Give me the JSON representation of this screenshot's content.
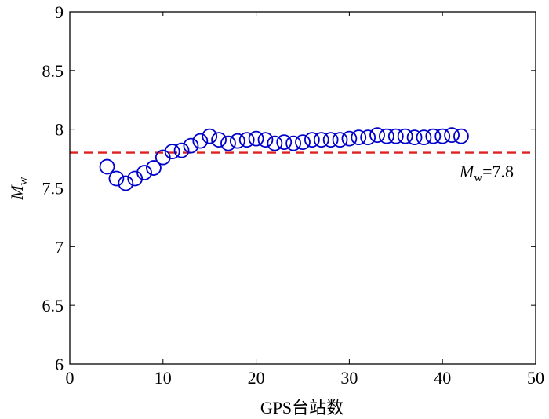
{
  "chart_data": {
    "type": "scatter",
    "title": "",
    "xlabel": "GPS台站数",
    "ylabel": {
      "main": "M",
      "sub": "w"
    },
    "xlim": [
      0,
      50
    ],
    "ylim": [
      6,
      9
    ],
    "xticks": [
      "0",
      "10",
      "20",
      "30",
      "40",
      "50"
    ],
    "yticks": [
      "6",
      "6.5",
      "7",
      "7.5",
      "8",
      "8.5",
      "9"
    ],
    "grid": false,
    "series": [
      {
        "marker": "circle-open",
        "color": "#0000cc",
        "x": [
          4,
          5,
          6,
          7,
          8,
          9,
          10,
          11,
          12,
          13,
          14,
          15,
          16,
          17,
          18,
          19,
          20,
          21,
          22,
          23,
          24,
          25,
          26,
          27,
          28,
          29,
          30,
          31,
          32,
          33,
          34,
          35,
          36,
          37,
          38,
          39,
          40,
          41,
          42
        ],
        "y": [
          7.68,
          7.58,
          7.54,
          7.58,
          7.63,
          7.67,
          7.76,
          7.81,
          7.82,
          7.86,
          7.9,
          7.94,
          7.91,
          7.88,
          7.9,
          7.91,
          7.92,
          7.91,
          7.88,
          7.89,
          7.88,
          7.89,
          7.91,
          7.91,
          7.91,
          7.91,
          7.92,
          7.93,
          7.93,
          7.95,
          7.94,
          7.94,
          7.94,
          7.93,
          7.93,
          7.94,
          7.94,
          7.95,
          7.94
        ]
      }
    ],
    "reference_line": {
      "y": 7.8,
      "style": "dashed",
      "color": "#dd2222",
      "label": {
        "main": "M",
        "sub": "w",
        "rest": "=7.8"
      }
    }
  }
}
